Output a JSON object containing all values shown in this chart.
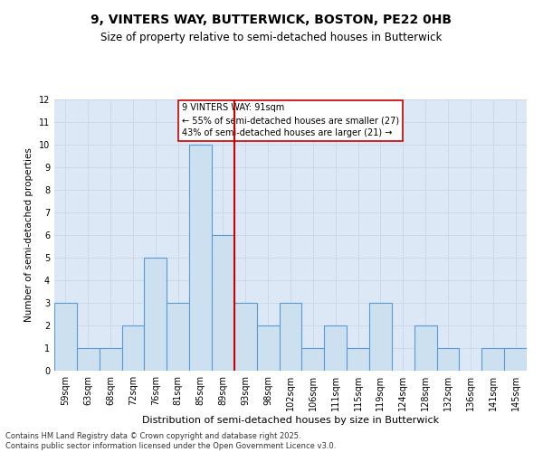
{
  "title1": "9, VINTERS WAY, BUTTERWICK, BOSTON, PE22 0HB",
  "title2": "Size of property relative to semi-detached houses in Butterwick",
  "categories": [
    "59sqm",
    "63sqm",
    "68sqm",
    "72sqm",
    "76sqm",
    "81sqm",
    "85sqm",
    "89sqm",
    "93sqm",
    "98sqm",
    "102sqm",
    "106sqm",
    "111sqm",
    "115sqm",
    "119sqm",
    "124sqm",
    "128sqm",
    "132sqm",
    "136sqm",
    "141sqm",
    "145sqm"
  ],
  "values": [
    3,
    1,
    1,
    2,
    5,
    3,
    10,
    6,
    3,
    2,
    3,
    1,
    2,
    1,
    3,
    0,
    2,
    1,
    0,
    1,
    1
  ],
  "bar_color": "#cce0f0",
  "bar_edge_color": "#5b9bd5",
  "bar_linewidth": 0.8,
  "property_line_x": 7.5,
  "property_line_color": "#cc0000",
  "xlabel": "Distribution of semi-detached houses by size in Butterwick",
  "ylabel": "Number of semi-detached properties",
  "ylim": [
    0,
    12
  ],
  "yticks": [
    0,
    1,
    2,
    3,
    4,
    5,
    6,
    7,
    8,
    9,
    10,
    11,
    12
  ],
  "annotation_text": "9 VINTERS WAY: 91sqm\n← 55% of semi-detached houses are smaller (27)\n43% of semi-detached houses are larger (21) →",
  "grid_color": "#d0d8e8",
  "background_color": "#dce8f5",
  "footer_text": "Contains HM Land Registry data © Crown copyright and database right 2025.\nContains public sector information licensed under the Open Government Licence v3.0.",
  "title1_fontsize": 10,
  "title2_fontsize": 8.5,
  "xlabel_fontsize": 8,
  "ylabel_fontsize": 7.5,
  "tick_fontsize": 7,
  "footer_fontsize": 6,
  "annotation_fontsize": 7
}
